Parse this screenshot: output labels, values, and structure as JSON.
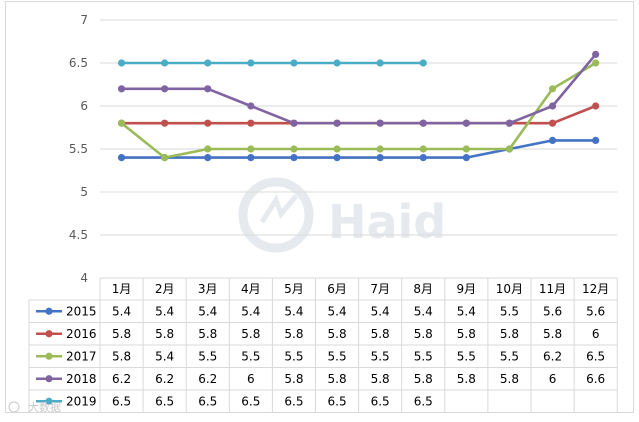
{
  "watermark": {
    "logo_text": "Haid",
    "credit": "大数据"
  },
  "colors": {
    "gridline": "#d9d9d9",
    "axis_text": "#595959",
    "watermark": "#e6eaee"
  },
  "chart_data": {
    "type": "line",
    "title": "",
    "xlabel": "",
    "ylabel": "",
    "ylim": [
      4,
      7
    ],
    "yticks": [
      4,
      4.5,
      5,
      5.5,
      6,
      6.5,
      7
    ],
    "grid": true,
    "legend": "data-table",
    "categories": [
      "1月",
      "2月",
      "3月",
      "4月",
      "5月",
      "6月",
      "7月",
      "8月",
      "9月",
      "10月",
      "11月",
      "12月"
    ],
    "series": [
      {
        "name": "2015",
        "color": "#4472c4",
        "values": [
          5.4,
          5.4,
          5.4,
          5.4,
          5.4,
          5.4,
          5.4,
          5.4,
          5.4,
          5.5,
          5.6,
          5.6
        ]
      },
      {
        "name": "2016",
        "color": "#c0504d",
        "values": [
          5.8,
          5.8,
          5.8,
          5.8,
          5.8,
          5.8,
          5.8,
          5.8,
          5.8,
          5.8,
          5.8,
          6
        ]
      },
      {
        "name": "2017",
        "color": "#9bbb59",
        "values": [
          5.8,
          5.4,
          5.5,
          5.5,
          5.5,
          5.5,
          5.5,
          5.5,
          5.5,
          5.5,
          6.2,
          6.5
        ]
      },
      {
        "name": "2018",
        "color": "#8064a2",
        "values": [
          6.2,
          6.2,
          6.2,
          6,
          5.8,
          5.8,
          5.8,
          5.8,
          5.8,
          5.8,
          6,
          6.6
        ]
      },
      {
        "name": "2019",
        "color": "#4bacc6",
        "values": [
          6.5,
          6.5,
          6.5,
          6.5,
          6.5,
          6.5,
          6.5,
          6.5,
          null,
          null,
          null,
          null
        ]
      }
    ]
  }
}
